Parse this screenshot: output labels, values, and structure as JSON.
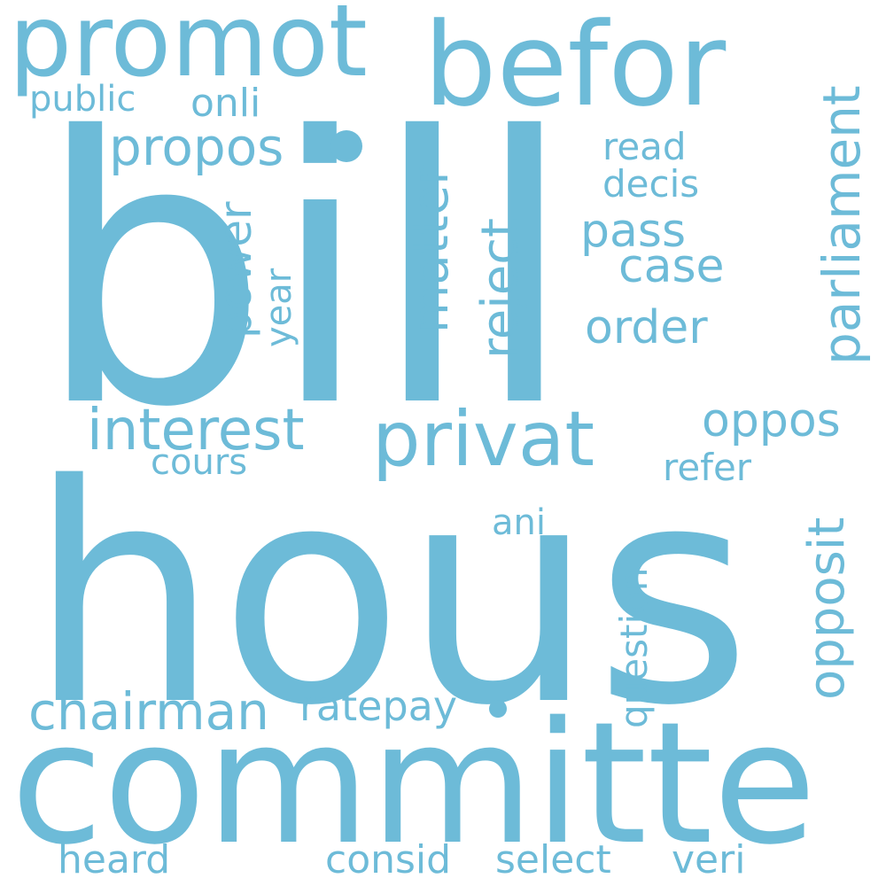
{
  "colors": {
    "background": "#ffffff",
    "word": "#6dbbd8"
  },
  "words": [
    {
      "text": "bill",
      "freq": 1.0
    },
    {
      "text": "hous",
      "freq": 0.97
    },
    {
      "text": "committe",
      "freq": 0.78
    },
    {
      "text": "befor",
      "freq": 0.55
    },
    {
      "text": "promot",
      "freq": 0.5
    },
    {
      "text": "privat",
      "freq": 0.38
    },
    {
      "text": "interest",
      "freq": 0.32
    },
    {
      "text": "parliament",
      "freq": 0.3
    },
    {
      "text": "chairman",
      "freq": 0.3
    },
    {
      "text": "opposit",
      "freq": 0.29
    },
    {
      "text": "propos",
      "freq": 0.28
    },
    {
      "text": "matter",
      "freq": 0.26
    },
    {
      "text": "reject",
      "freq": 0.26
    },
    {
      "text": "oppos",
      "freq": 0.26
    },
    {
      "text": "order",
      "freq": 0.26
    },
    {
      "text": "pass",
      "freq": 0.25
    },
    {
      "text": "case",
      "freq": 0.25
    },
    {
      "text": "power",
      "freq": 0.24
    },
    {
      "text": "ratepay",
      "freq": 0.24
    },
    {
      "text": "question",
      "freq": 0.22
    },
    {
      "text": "onli",
      "freq": 0.22
    },
    {
      "text": "heard",
      "freq": 0.22
    },
    {
      "text": "consid",
      "freq": 0.22
    },
    {
      "text": "select",
      "freq": 0.22
    },
    {
      "text": "veri",
      "freq": 0.22
    },
    {
      "text": "decis",
      "freq": 0.2
    },
    {
      "text": "read",
      "freq": 0.2
    },
    {
      "text": "refer",
      "freq": 0.2
    },
    {
      "text": "public",
      "freq": 0.19
    },
    {
      "text": "cours",
      "freq": 0.19
    },
    {
      "text": "ani",
      "freq": 0.19
    },
    {
      "text": "year",
      "freq": 0.18
    }
  ]
}
